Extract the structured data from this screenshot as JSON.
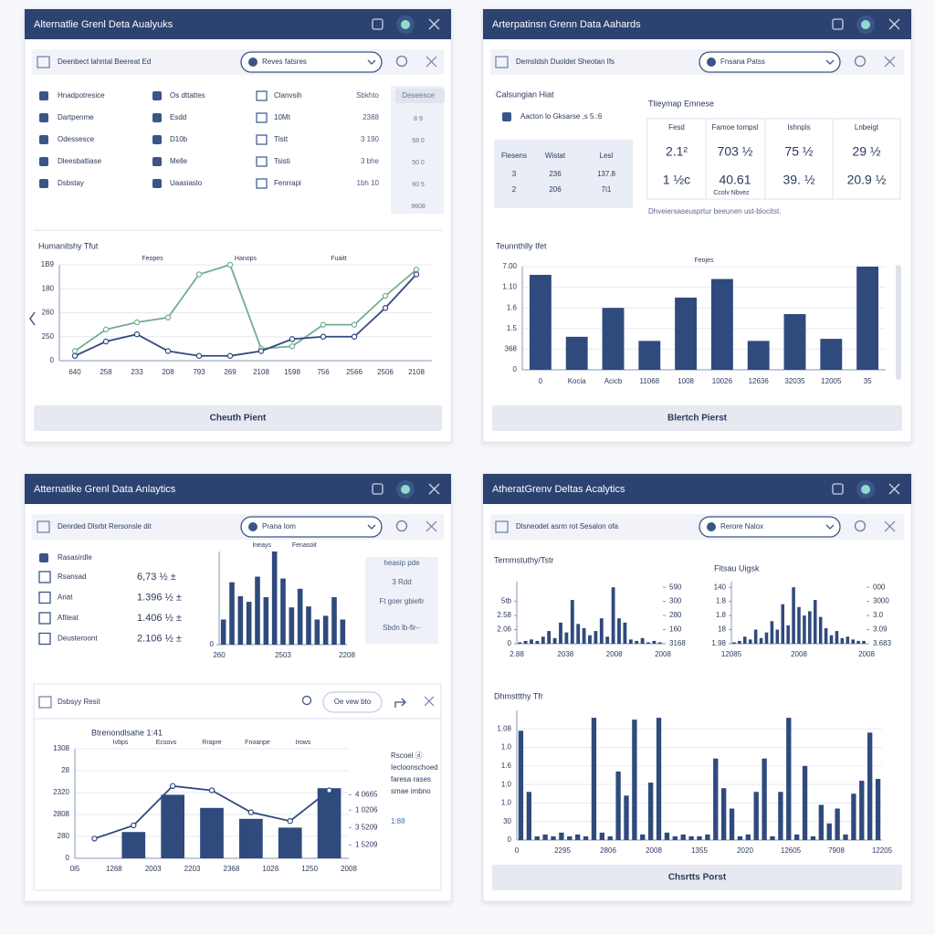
{
  "panels": [
    {
      "title": "Alternatlie Grenl Deta Aualyuks",
      "toolbar": "Deenbect lahntal Beereat Ed",
      "dropdown": "Reves fatsres",
      "button": "Cheuth Pient",
      "list": [
        [
          "Hnadpotresice",
          "Os dttattes",
          "Clanvsih",
          "Sbkhto"
        ],
        [
          "Dartpenme",
          "Esdd",
          "10Mt",
          "2388"
        ],
        [
          "Odessesce",
          "D10b",
          "Tlstt",
          "3 190"
        ],
        [
          "Dleesbaltiase",
          "Melle",
          "Tsisti",
          "3 bhe"
        ],
        [
          "Dsbstay",
          "Uaasiaslo",
          "Fenrrapi",
          "1bh 10"
        ]
      ],
      "side": [
        "Deseesce",
        "8 9",
        "58 0",
        "50 0",
        "60 5",
        "9608"
      ]
    },
    {
      "title": "Arterpatinsn Grenn Data Aahards",
      "toolbar": "Demsldsh Duoldet Sheotan Ifs",
      "dropdown": "Fnsana Patss",
      "button": "Blertch Pierst",
      "summary": {
        "title": "Calsungian Hiat",
        "note": "Aacton lo Gksarse ,s 5.:6",
        "headers": [
          "Flesens",
          "Wistat",
          "Lesl"
        ],
        "rows": [
          [
            "3",
            "236",
            "137.8"
          ],
          [
            "2",
            "206",
            "7i1"
          ]
        ]
      },
      "matrix": {
        "title": "Tlieymap Emnese",
        "headers": [
          "Fesd",
          "Famoe tompsl",
          "Ishnpls",
          "Lnbeigt"
        ],
        "rows": [
          [
            "2.1²",
            "703 ½",
            "75 ½",
            "29 ½"
          ],
          [
            "1 ½c",
            "40.61",
            "39. ½",
            "20.9 ½"
          ]
        ],
        "sub": "Ccolv Nbvez",
        "caption": "Dhveiersaseusprtur beeunen ust-blocitst."
      }
    },
    {
      "title": "Atternatike Grenl Data Anlaytics",
      "toolbar": "Denrded Dlsrbt Rersonsle dit",
      "dropdown": "Prana Iom",
      "stats": {
        "title": "Rasasirdle",
        "rows": [
          [
            "Rsansad",
            "6,73 ½ ±"
          ],
          [
            "Ariat",
            "1.396 ½ ±"
          ],
          [
            "Afiteat",
            "1.406 ½ ±"
          ],
          [
            "Deusteroont",
            "2.106 ½ ±"
          ]
        ]
      },
      "side": [
        "heasip pde",
        "3 Rdd",
        "Ft goer gbieltr",
        "Sbdn lb-fir-·"
      ],
      "sub_panel": {
        "title": "Dsbsyy Resit",
        "button": "Oe vew bto"
      }
    },
    {
      "title": "AtheratGrenv Deltas Acalytics",
      "toolbar": "Dlsneodet asrm rot Sesalon ofa",
      "dropdown": "Rerore Nalox",
      "button": "Chsrtts Porst"
    }
  ],
  "chart_data": [
    {
      "type": "line",
      "title": "Humanitshy Tfut",
      "annotations": [
        "Feopes",
        "Hanops",
        "Fuaitt"
      ],
      "categories": [
        "640",
        "258",
        "233",
        "208",
        "793",
        "269",
        "2108",
        "1598",
        "756",
        "2566",
        "2506",
        "2108"
      ],
      "series": [
        {
          "color": "#6fae92",
          "values": [
            0.4,
            1.3,
            1.6,
            1.8,
            3.6,
            4.0,
            0.5,
            0.6,
            1.5,
            1.5,
            2.7,
            3.8
          ]
        },
        {
          "color": "#2f4a7d",
          "values": [
            0.2,
            0.8,
            1.1,
            0.4,
            0.2,
            0.2,
            0.4,
            0.9,
            1.0,
            1.0,
            2.2,
            3.6
          ]
        }
      ],
      "ylim": [
        0,
        4
      ],
      "yticks": [
        0,
        {
          "value": 1,
          "label": "250"
        },
        {
          "value": 2,
          "label": "260"
        },
        {
          "value": 3,
          "label": "180"
        },
        {
          "value": 4,
          "label": "1B9"
        }
      ],
      "grid": true
    },
    {
      "type": "bar",
      "title": "Teunnthlly Ifet",
      "annotations": [
        "Feojes"
      ],
      "color": "#2f4a7d",
      "categories": [
        "0",
        "Kocia",
        "Acicb",
        "11068",
        "1008",
        "10026",
        "12636",
        "32035",
        "12005",
        "35"
      ],
      "values": [
        4.6,
        1.6,
        3.0,
        1.4,
        3.5,
        4.4,
        1.4,
        2.7,
        1.5,
        5.0
      ],
      "ylim": [
        0,
        5
      ],
      "yticks": [
        0,
        {
          "value": 1,
          "label": "368"
        },
        {
          "value": 2,
          "label": "1.5"
        },
        {
          "value": 3,
          "label": "1.6"
        },
        {
          "value": 4,
          "label": "1.10"
        },
        {
          "value": 5,
          "label": "7.00"
        }
      ],
      "grid": true
    },
    {
      "type": "bar",
      "annotations": [
        "Ineays",
        "Fenasoit"
      ],
      "color": "#2f4a7d",
      "values": [
        2.7,
        6.7,
        5.2,
        4.6,
        7.3,
        5.1,
        10,
        7.1,
        4.0,
        6.0,
        4.1,
        2.7,
        3.1,
        5.1,
        2.7
      ],
      "x_labels": [
        "260",
        "2503",
        "2208"
      ],
      "ylim": [
        0,
        10
      ],
      "yticks": [
        0
      ],
      "grid": false
    },
    {
      "type": "combo",
      "title": "Btrenondlsahe 1:41",
      "annotations": [
        "Ivbps",
        "Ecsovs",
        "Rrapre",
        "Fnoanpe",
        "Irows"
      ],
      "series": [
        {
          "mark": "bar",
          "color": "#2f4a7d",
          "values": [
            null,
            1.2,
            2.9,
            2.3,
            1.8,
            1.4,
            3.2
          ]
        },
        {
          "mark": "line",
          "color": "#2f4a7d",
          "values": [
            0.9,
            1.5,
            3.3,
            3.1,
            2.1,
            1.7,
            3.1
          ]
        }
      ],
      "x_labels": [
        "0l5",
        "1268",
        "2003",
        "2203",
        "2368",
        "1028",
        "1250",
        "2008"
      ],
      "ylim": [
        0,
        5
      ],
      "yticks": [
        0,
        {
          "value": 1,
          "label": "280"
        },
        {
          "value": 2,
          "label": "2808"
        },
        {
          "value": 3,
          "label": "2320"
        },
        {
          "value": 4,
          "label": "28"
        },
        {
          "value": 5,
          "label": "1308"
        }
      ],
      "y2lim": [
        0,
        5
      ],
      "y2ticks": [
        {
          "value": 0.6,
          "label": "1 5209"
        },
        {
          "value": 1.4,
          "label": "3 5209"
        },
        {
          "value": 2.2,
          "label": "1 0206"
        },
        {
          "value": 2.9,
          "label": "4 0665"
        }
      ],
      "legend": [
        "Rscoel ⓓ",
        "Iecloonschoed",
        "faresa rases",
        "smae imbno",
        "1:88"
      ],
      "grid": true
    },
    {
      "type": "bar",
      "title": "Temmstuthy/Tstr",
      "color": "#2f4a7d",
      "values": [
        0.1,
        0.2,
        0.3,
        0.2,
        0.5,
        0.9,
        0.4,
        1.5,
        0.8,
        3.1,
        1.4,
        1.1,
        0.6,
        0.9,
        1.8,
        0.5,
        4.0,
        1.8,
        1.5,
        0.3,
        0.2,
        0.4,
        0.1,
        0.2,
        0.1
      ],
      "x_labels": [
        "2.88",
        "2038",
        "2008",
        "2008"
      ],
      "ylim": [
        0,
        4.4
      ],
      "yticks": [
        0,
        {
          "value": 1,
          "label": "2.06"
        },
        {
          "value": 2,
          "label": "2.58"
        },
        {
          "value": 3,
          "label": "5tb"
        },
        140
      ],
      "y2lim": [
        0,
        4.4
      ],
      "y2ticks": [
        {
          "value": 0,
          "label": "3168"
        },
        {
          "value": 1,
          "label": "160"
        },
        {
          "value": 2,
          "label": "280"
        },
        {
          "value": 3,
          "label": "300"
        },
        {
          "value": 4,
          "label": "590"
        }
      ],
      "grid": false
    },
    {
      "type": "bar",
      "title": "Fitsau Uigsk",
      "color": "#2f4a7d",
      "values": [
        0.1,
        0.2,
        0.5,
        0.3,
        1.0,
        0.4,
        0.8,
        1.6,
        1.0,
        2.8,
        1.3,
        4.0,
        2.6,
        2.0,
        2.3,
        3.1,
        1.9,
        1.1,
        0.6,
        0.9,
        0.4,
        0.5,
        0.3,
        0.2,
        0.2
      ],
      "x_labels": [
        "12085",
        "2008",
        "2008"
      ],
      "ylim": [
        0,
        4.4
      ],
      "yticks": [
        {
          "value": 0,
          "label": "1.98"
        },
        {
          "value": 1,
          "label": "18"
        },
        {
          "value": 2,
          "label": "1.8"
        },
        {
          "value": 3,
          "label": "1.8"
        },
        {
          "value": 4,
          "label": "140"
        }
      ],
      "y2lim": [
        0,
        4.4
      ],
      "y2ticks": [
        {
          "value": 0,
          "label": "3.683"
        },
        {
          "value": 1,
          "label": "3.09"
        },
        {
          "value": 2,
          "label": "3.0"
        },
        {
          "value": 3,
          "label": "3000"
        },
        {
          "value": 4,
          "label": "000"
        }
      ],
      "grid": false
    },
    {
      "type": "bar",
      "title": "Dhmsttthy Tfr",
      "color": "#2f4a7d",
      "values": [
        5.9,
        2.6,
        0.2,
        0.3,
        0.2,
        0.4,
        0.2,
        0.3,
        0.2,
        6.6,
        0.4,
        0.2,
        3.7,
        2.4,
        6.5,
        0.3,
        3.1,
        6.6,
        0.4,
        0.2,
        0.3,
        0.2,
        0.2,
        0.3,
        4.4,
        2.8,
        1.7,
        0.2,
        0.3,
        2.6,
        4.4,
        0.2,
        2.6,
        6.6,
        0.3,
        4.0,
        0.2,
        1.9,
        0.9,
        1.7,
        0.3,
        2.5,
        3.2,
        5.8,
        3.3
      ],
      "x_labels": [
        "0",
        "2295",
        "2806",
        "2008",
        "1355",
        "2020",
        "12605",
        "7908",
        "12205"
      ],
      "ylim": [
        0,
        7
      ],
      "yticks": [
        0,
        {
          "value": 1,
          "label": "30"
        },
        {
          "value": 2,
          "label": "1.0"
        },
        {
          "value": 3,
          "label": "1.0"
        },
        {
          "value": 4,
          "label": "1.6"
        },
        {
          "value": 5,
          "label": "1.0"
        },
        {
          "value": 6,
          "label": "1.08"
        }
      ],
      "grid": true
    }
  ]
}
